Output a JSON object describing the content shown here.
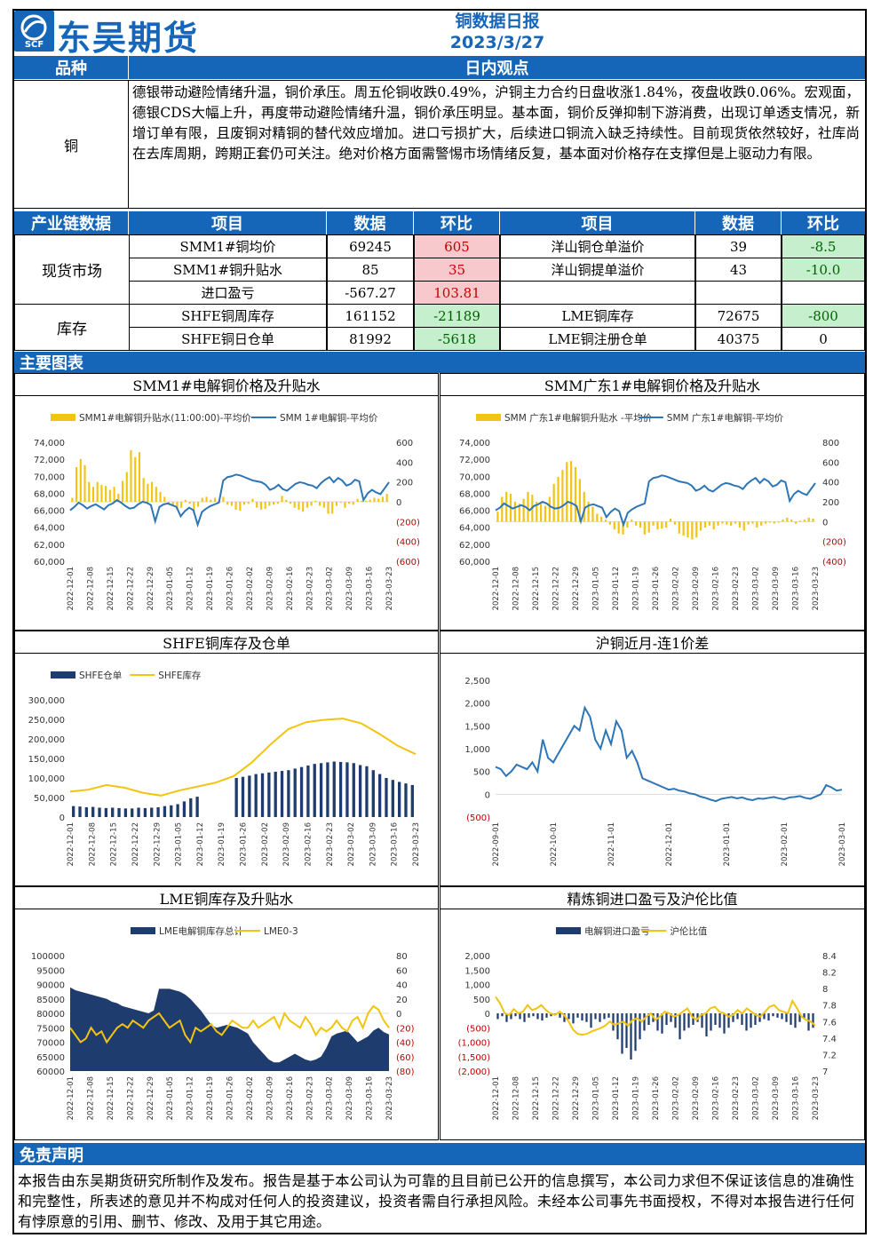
{
  "header": {
    "company_name": "东吴期货",
    "logo_mark": "SCF",
    "report_title": "铜数据日报",
    "report_date": "2023/3/27"
  },
  "view_section": {
    "col_variety": "品种",
    "col_view": "日内观点",
    "variety": "铜",
    "view_text": "德银带动避险情绪升温，铜价承压。周五伦铜收跌0.49%，沪铜主力合约日盘收涨1.84%，夜盘收跌0.06%。宏观面，德银CDS大幅上升，再度带动避险情绪升温，铜价承压明显。基本面，铜价反弹抑制下游消费，出现订单透支情况，新增订单有限，且废铜对精铜的替代效应增加。进口亏损扩大，后续进口铜流入缺乏持续性。目前现货依然较好，社库尚在去库周期，跨期正套仍可关注。绝对价格方面需警惕市场情绪反复，基本面对价格存在支撑但是上驱动力有限。"
  },
  "chain_table": {
    "headers": [
      "产业链数据",
      "项目",
      "数据",
      "环比",
      "项目",
      "数据",
      "环比"
    ],
    "groups": [
      {
        "name": "现货市场",
        "rows": [
          {
            "item1": "SMM1#铜均价",
            "val1": "69245",
            "chg1": "605",
            "item2": "洋山铜仓单溢价",
            "val2": "39",
            "chg2": "-8.5"
          },
          {
            "item1": "SMM1#铜升贴水",
            "val1": "85",
            "chg1": "35",
            "item2": "洋山铜提单溢价",
            "val2": "43",
            "chg2": "-10.0"
          },
          {
            "item1": "进口盈亏",
            "val1": "-567.27",
            "chg1": "103.81",
            "item2": "",
            "val2": "",
            "chg2": ""
          }
        ]
      },
      {
        "name": "库存",
        "rows": [
          {
            "item1": "SHFE铜周库存",
            "val1": "161152",
            "chg1": "-21189",
            "item2": "LME铜库存",
            "val2": "72675",
            "chg2": "-800"
          },
          {
            "item1": "SHFE铜日仓单",
            "val1": "81992",
            "chg1": "-5618",
            "item2": "LME铜注册仓单",
            "val2": "40375",
            "chg2": "0"
          }
        ]
      }
    ]
  },
  "charts_section": {
    "title": "主要图表"
  },
  "chart_data": [
    {
      "type": "bar+line",
      "title": "SMM1#电解铜价格及升贴水",
      "legend": [
        "SMM1#电解铜升贴水(11:00:00)-平均价",
        "SMM 1#电解铜-平均价"
      ],
      "x_ticks": [
        "2022-12-01",
        "2022-12-08",
        "2022-12-15",
        "2022-12-22",
        "2022-12-29",
        "2023-01-05",
        "2023-01-12",
        "2023-01-19",
        "2023-01-26",
        "2023-02-02",
        "2023-02-09",
        "2023-02-16",
        "2023-02-23",
        "2023-03-02",
        "2023-03-09",
        "2023-03-16",
        "2023-03-23"
      ],
      "y_left_ticks": [
        "74,000",
        "72,000",
        "70,000",
        "68,000",
        "66,000",
        "64,000",
        "62,000",
        "60,000"
      ],
      "y_right_ticks": [
        "600",
        "400",
        "200",
        "0",
        "(200)",
        "(400)",
        "(600)"
      ],
      "left_range": [
        60000,
        74000
      ],
      "right_range": [
        -600,
        600
      ],
      "line": [
        66000,
        66400,
        66900,
        66600,
        66200,
        66500,
        66700,
        66400,
        66100,
        66600,
        66800,
        67200,
        66900,
        66500,
        66200,
        66300,
        66700,
        67000,
        66900,
        66600,
        64700,
        66400,
        66700,
        66800,
        66600,
        66400,
        65300,
        65900,
        66300,
        66000,
        64300,
        65800,
        66200,
        66500,
        66700,
        66900,
        69500,
        69900,
        70000,
        70200,
        70100,
        69900,
        69700,
        69500,
        69400,
        69300,
        69000,
        68400,
        68600,
        69000,
        68500,
        68300,
        68700,
        69100,
        69300,
        69200,
        69000,
        68900,
        68600,
        69200,
        69600,
        69900,
        69300,
        69800,
        69500,
        68900,
        69100,
        69600,
        69400,
        67200,
        68000,
        68400,
        68100,
        67900,
        68600,
        69300
      ],
      "bars": [
        40,
        350,
        430,
        370,
        200,
        150,
        200,
        170,
        160,
        120,
        150,
        80,
        210,
        300,
        520,
        450,
        500,
        240,
        180,
        200,
        150,
        100,
        50,
        -30,
        -40,
        -80,
        -60,
        20,
        -20,
        -120,
        -50,
        40,
        50,
        20,
        40,
        10,
        50,
        -30,
        -40,
        -80,
        -90,
        -30,
        -20,
        30,
        -60,
        -80,
        -70,
        -40,
        -30,
        -20,
        60,
        20,
        -20,
        -60,
        -80,
        -100,
        -60,
        -40,
        10,
        -40,
        -60,
        -120,
        -120,
        -40,
        -10,
        -60,
        -20,
        -30,
        30,
        10,
        10,
        20,
        40,
        30,
        50,
        80
      ]
    },
    {
      "type": "bar+line",
      "title": "SMM广东1#电解铜价格及升贴水",
      "legend": [
        "SMM 广东1#电解铜升贴水 -平均价",
        "SMM 广东1#电解铜-平均价"
      ],
      "x_ticks": [
        "2022-12-01",
        "2022-12-08",
        "2022-12-15",
        "2022-12-22",
        "2022-12-29",
        "2023-01-05",
        "2023-01-12",
        "2023-01-19",
        "2023-01-26",
        "2023-02-02",
        "2023-02-09",
        "2023-02-16",
        "2023-02-23",
        "2023-03-02",
        "2023-03-09",
        "2023-03-16",
        "2023-03-23"
      ],
      "y_left_ticks": [
        "74,000",
        "72,000",
        "70,000",
        "68,000",
        "66,000",
        "64,000",
        "62,000",
        "60,000"
      ],
      "y_right_ticks": [
        "800",
        "600",
        "400",
        "200",
        "0",
        "(200)",
        "(400)"
      ],
      "left_range": [
        60000,
        74000
      ],
      "right_range": [
        -400,
        800
      ],
      "line": [
        66000,
        66300,
        66800,
        66500,
        66200,
        66400,
        66600,
        66400,
        66000,
        66500,
        66700,
        67000,
        66800,
        66400,
        66200,
        66300,
        66600,
        67000,
        66800,
        66500,
        64700,
        66300,
        66600,
        66700,
        66500,
        66300,
        65200,
        65800,
        66200,
        65900,
        64300,
        65700,
        66100,
        66400,
        66600,
        66800,
        69400,
        69800,
        69900,
        70100,
        70000,
        69800,
        69600,
        69400,
        69300,
        69200,
        68900,
        68300,
        68500,
        68900,
        68400,
        68200,
        68600,
        69000,
        69200,
        69100,
        68900,
        68800,
        68500,
        69100,
        69500,
        69800,
        69200,
        69700,
        69400,
        68800,
        69000,
        69500,
        69300,
        67100,
        67900,
        68300,
        68000,
        67800,
        68500,
        69200
      ],
      "bars": [
        100,
        250,
        300,
        280,
        200,
        180,
        230,
        300,
        270,
        200,
        180,
        160,
        250,
        380,
        450,
        520,
        600,
        610,
        550,
        430,
        300,
        200,
        150,
        80,
        50,
        20,
        -30,
        -80,
        -120,
        -130,
        -60,
        20,
        -40,
        -60,
        -130,
        -110,
        -40,
        -80,
        -70,
        -60,
        30,
        -30,
        -120,
        -140,
        -160,
        -180,
        -160,
        -90,
        -60,
        -40,
        -80,
        -40,
        -20,
        -30,
        -40,
        -20,
        -60,
        -90,
        -30,
        -20,
        -60,
        -40,
        -20,
        -10,
        -20,
        -10,
        20,
        40,
        20,
        -20,
        10,
        20,
        40,
        30
      ]
    },
    {
      "type": "bar+line",
      "title": "SHFE铜库存及仓单",
      "legend": [
        "SHFE仓单",
        "SHFE库存"
      ],
      "x_ticks": [
        "2022-12-01",
        "2022-12-08",
        "2022-12-15",
        "2022-12-22",
        "2022-12-29",
        "2023-01-05",
        "2023-01-12",
        "2023-01-19",
        "2023-01-26",
        "2023-02-02",
        "2023-02-09",
        "2023-02-16",
        "2023-02-23",
        "2023-03-02",
        "2023-03-09",
        "2023-03-16",
        "2023-03-23"
      ],
      "y_ticks": [
        "300,000",
        "250,000",
        "200,000",
        "150,000",
        "100,000",
        "50,000",
        "0"
      ],
      "range": [
        0,
        300000
      ],
      "line": [
        65000,
        70000,
        82000,
        75000,
        62000,
        55000,
        68000,
        78000,
        88000,
        105000,
        140000,
        185000,
        225000,
        243000,
        249000,
        252000,
        240000,
        213000,
        183000,
        161000
      ],
      "bars": [
        28000,
        27000,
        25000,
        26000,
        24000,
        23000,
        24000,
        23000,
        22000,
        22000,
        24000,
        23000,
        24000,
        25000,
        28000,
        30000,
        33000,
        40000,
        48000,
        52000,
        0,
        0,
        0,
        0,
        0,
        100000,
        103000,
        106000,
        110000,
        112000,
        114000,
        116000,
        118000,
        120000,
        124000,
        128000,
        132000,
        136000,
        138000,
        140000,
        142000,
        141000,
        140000,
        138000,
        133000,
        130000,
        120000,
        110000,
        100000,
        95000,
        90000,
        86000,
        82000
      ]
    },
    {
      "type": "line",
      "title": "沪铜近月-连1价差",
      "x_ticks": [
        "2022-09-01",
        "2022-10-01",
        "2022-11-01",
        "2022-12-01",
        "2023-01-01",
        "2023-02-01",
        "2023-03-01"
      ],
      "y_ticks": [
        "2,500",
        "2,000",
        "1,500",
        "1,000",
        "500",
        "0",
        "(500)"
      ],
      "range": [
        -500,
        2500
      ],
      "line": [
        600,
        550,
        400,
        500,
        650,
        600,
        550,
        700,
        500,
        1200,
        800,
        700,
        900,
        1100,
        1300,
        1500,
        1400,
        1900,
        1700,
        1200,
        1000,
        1400,
        1100,
        1600,
        1400,
        800,
        950,
        700,
        350,
        300,
        250,
        200,
        150,
        100,
        120,
        80,
        60,
        20,
        0,
        -50,
        -80,
        -120,
        -150,
        -100,
        -80,
        -60,
        -90,
        -70,
        -110,
        -130,
        -90,
        -100,
        -80,
        -60,
        -90,
        -110,
        -70,
        -60,
        -40,
        -80,
        -100,
        -50,
        0,
        200,
        150,
        80,
        100
      ]
    },
    {
      "type": "area+line",
      "title": "LME铜库存及升贴水",
      "legend": [
        "LME电解铜库存总计",
        "LME0-3"
      ],
      "x_ticks": [
        "2022-12-01",
        "2022-12-08",
        "2022-12-15",
        "2022-12-22",
        "2022-12-29",
        "2023-01-05",
        "2023-01-12",
        "2023-01-19",
        "2023-01-26",
        "2023-02-02",
        "2023-02-09",
        "2023-02-16",
        "2023-02-23",
        "2023-03-02",
        "2023-03-09",
        "2023-03-16",
        "2023-03-23"
      ],
      "y_left_ticks": [
        "100000",
        "95000",
        "90000",
        "85000",
        "80000",
        "75000",
        "70000",
        "65000",
        "60000"
      ],
      "y_right_ticks": [
        "80",
        "60",
        "40",
        "20",
        "0",
        "(20)",
        "(40)",
        "(60)",
        "(80)"
      ],
      "left_range": [
        60000,
        100000
      ],
      "right_range": [
        -80,
        80
      ],
      "area": [
        89000,
        88000,
        87500,
        87000,
        86500,
        86000,
        85500,
        85000,
        84000,
        83500,
        82500,
        82000,
        81500,
        81000,
        80500,
        80000,
        81000,
        88500,
        88500,
        88500,
        88000,
        87500,
        86500,
        85000,
        83000,
        81000,
        78500,
        76000,
        75000,
        75500,
        76000,
        75500,
        75000,
        74000,
        73000,
        70000,
        68000,
        66000,
        64000,
        63000,
        63000,
        64000,
        65000,
        66000,
        65000,
        64000,
        63500,
        64000,
        65000,
        68000,
        72000,
        73000,
        73500,
        74000,
        72000,
        70000,
        71000,
        72000,
        74000,
        75000,
        73500,
        72675
      ],
      "line": [
        -20,
        -30,
        -40,
        -35,
        -20,
        -30,
        -25,
        -40,
        -30,
        -20,
        -15,
        -20,
        -10,
        -15,
        -20,
        -10,
        -5,
        0,
        -10,
        -20,
        -15,
        -10,
        -30,
        -40,
        -20,
        -25,
        -20,
        -15,
        -25,
        -30,
        -20,
        -10,
        -15,
        -20,
        -20,
        -10,
        -20,
        -15,
        -10,
        -5,
        -20,
        0,
        -10,
        -15,
        -20,
        -5,
        -15,
        -30,
        -20,
        -25,
        -20,
        -10,
        -20,
        -25,
        -10,
        -5,
        -20,
        0,
        10,
        5,
        -10,
        -20
      ]
    },
    {
      "type": "bar+line",
      "title": "精炼铜进口盈亏及沪伦比值",
      "legend": [
        "电解铜进口盈亏",
        "沪伦比值"
      ],
      "x_ticks": [
        "2022-12-01",
        "2022-12-08",
        "2022-12-15",
        "2022-12-22",
        "2022-12-29",
        "2023-01-05",
        "2023-01-12",
        "2023-01-19",
        "2023-01-26",
        "2023-02-02",
        "2023-02-09",
        "2023-02-16",
        "2023-02-23",
        "2023-03-02",
        "2023-03-09",
        "2023-03-16",
        "2023-03-23"
      ],
      "y_left_ticks": [
        "2,000",
        "1,500",
        "1,000",
        "500",
        "0",
        "(500)",
        "(1,000)",
        "(1,500)",
        "(2,000)"
      ],
      "y_right_ticks": [
        "8.4",
        "8.2",
        "8",
        "7.8",
        "7.6",
        "7.4",
        "7.2",
        "7"
      ],
      "left_range": [
        -2000,
        2000
      ],
      "right_range": [
        7.0,
        8.4
      ],
      "bars": [
        -200,
        -100,
        -300,
        -200,
        -100,
        -200,
        -300,
        -150,
        -100,
        -200,
        -250,
        -150,
        -100,
        -50,
        -150,
        -300,
        -200,
        -350,
        -150,
        -250,
        -300,
        -500,
        -200,
        -300,
        -200,
        -150,
        -600,
        -900,
        -1400,
        -1200,
        -1600,
        -1300,
        -900,
        -600,
        -400,
        -300,
        -600,
        -700,
        -400,
        -300,
        -500,
        -900,
        -600,
        -500,
        -400,
        -300,
        -500,
        -800,
        -600,
        -400,
        -500,
        -700,
        -500,
        -300,
        -200,
        -400,
        -600,
        -500,
        -400,
        -300,
        -200,
        -250,
        -100,
        -150,
        -200,
        -300,
        -400,
        -500,
        -300,
        -200,
        -600,
        -500
      ],
      "line": [
        7.9,
        7.82,
        7.7,
        7.68,
        7.75,
        7.7,
        7.72,
        7.8,
        7.74,
        7.76,
        7.8,
        7.74,
        7.7,
        7.68,
        7.72,
        7.68,
        7.6,
        7.5,
        7.45,
        7.44,
        7.45,
        7.48,
        7.5,
        7.52,
        7.55,
        7.6,
        7.56,
        7.58,
        7.6,
        7.55,
        7.62,
        7.64,
        7.6,
        7.66,
        7.7,
        7.62,
        7.66,
        7.72,
        7.7,
        7.66,
        7.68,
        7.72,
        7.76,
        7.66,
        7.62,
        7.68,
        7.7,
        7.76,
        7.78,
        7.72,
        7.7,
        7.66,
        7.68,
        7.74,
        7.7,
        7.76,
        7.72,
        7.68,
        7.66,
        7.72,
        7.78,
        7.8,
        7.74,
        7.72,
        7.7,
        7.85,
        7.76,
        7.66,
        7.62,
        7.6,
        7.55
      ]
    }
  ],
  "disclaimer": {
    "title": "免责声明",
    "text": "本报告由东吴期货研究所制作及发布。报告是基于本公司认为可靠的且目前已公开的信息撰写，本公司力求但不保证该信息的准确性和完整性，所表述的意见并不构成对任何人的投资建议，投资者需自行承担风险。未经本公司事先书面授权，不得对本报告进行任何有悖原意的引用、删节、修改、及用于其它用途。"
  },
  "colors": {
    "brand_blue": "#1565B8",
    "bar_gold": "#F2C40F",
    "line_blue": "#2E75B6",
    "bar_navy": "#1F3C6E",
    "neg_red": "#C00000"
  }
}
